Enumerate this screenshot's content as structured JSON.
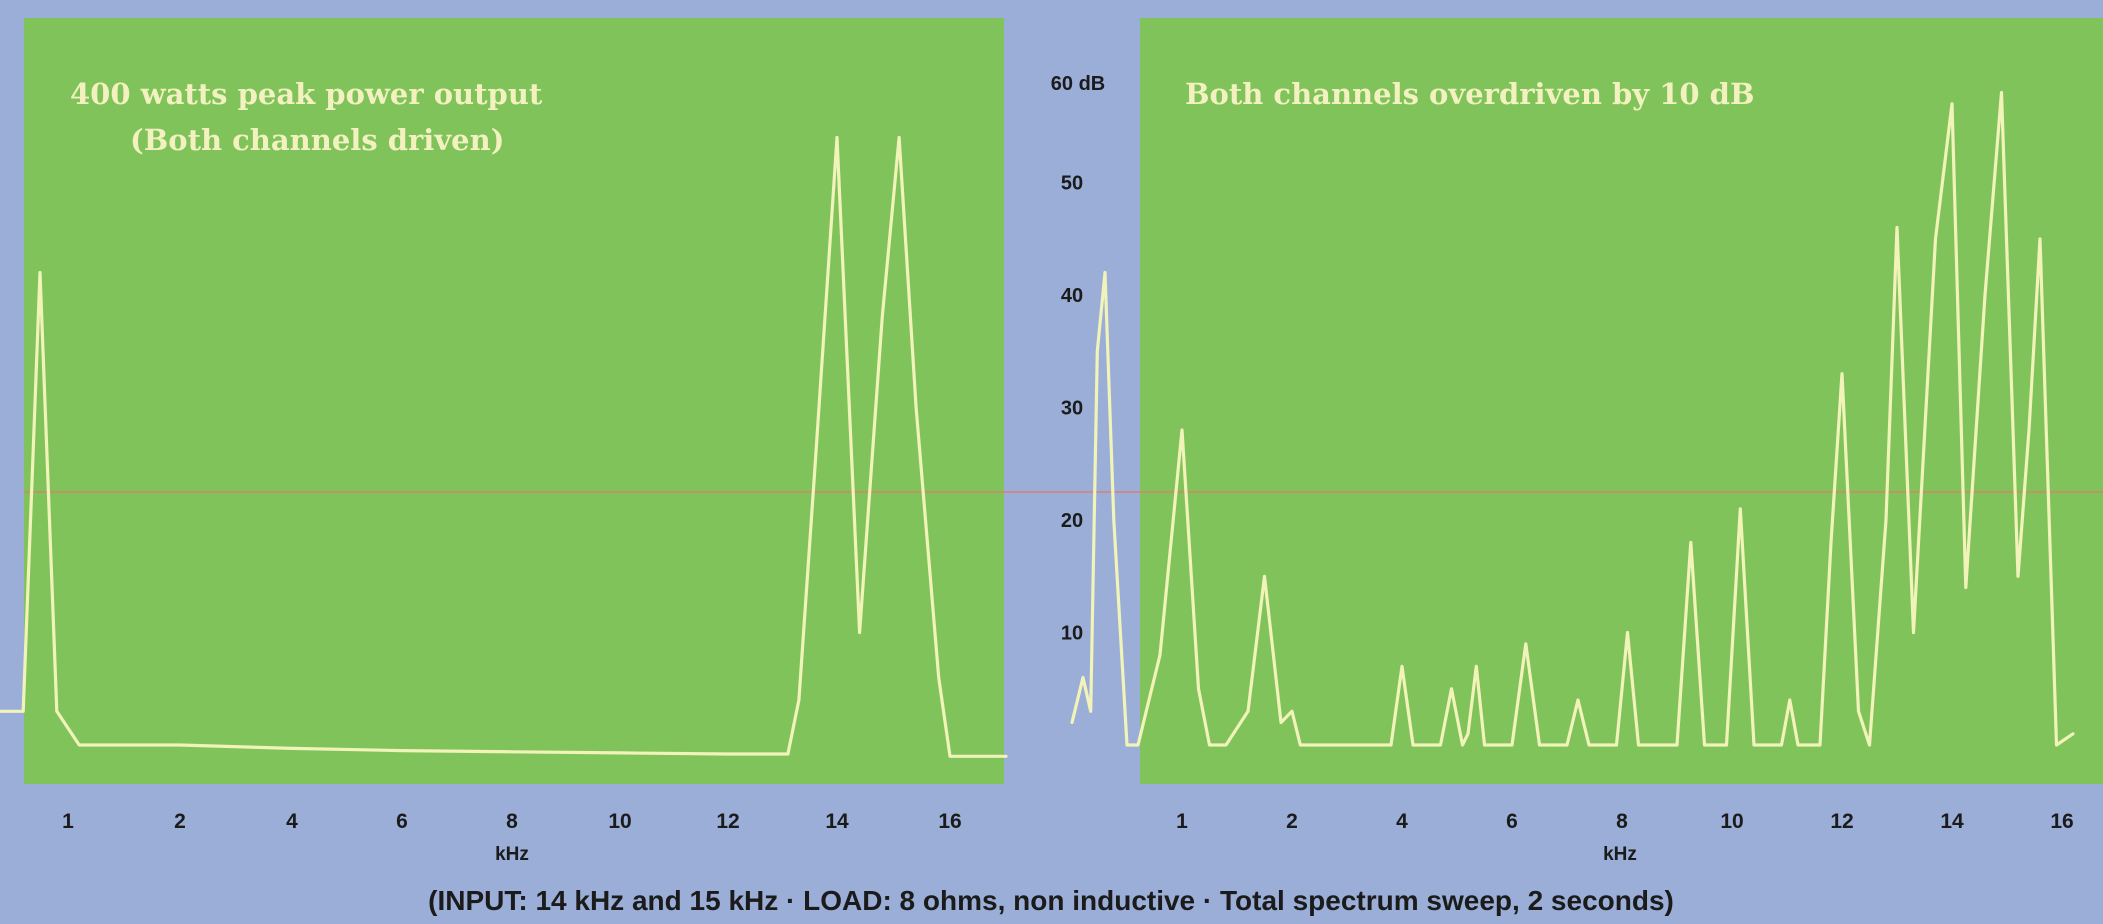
{
  "chart_data": [
    {
      "type": "line",
      "title": "400 watts peak power output",
      "subtitle": "(Both channels driven)",
      "xlabel": "kHz",
      "x_ticks": [
        "1",
        "2",
        "4",
        "6",
        "8",
        "10",
        "12",
        "14",
        "16"
      ],
      "ylim": [
        0,
        60
      ],
      "series": [
        {
          "values": [
            [
              0.2,
              3
            ],
            [
              0.6,
              3
            ],
            [
              0.75,
              42
            ],
            [
              0.9,
              3
            ],
            [
              1.1,
              0
            ],
            [
              2,
              0
            ],
            [
              4,
              -0.3
            ],
            [
              6,
              -0.5
            ],
            [
              8,
              -0.6
            ],
            [
              10,
              -0.7
            ],
            [
              12,
              -0.8
            ],
            [
              13.1,
              -0.8
            ],
            [
              13.3,
              4
            ],
            [
              13.6,
              25
            ],
            [
              14.0,
              54
            ],
            [
              14.4,
              10
            ],
            [
              14.8,
              38
            ],
            [
              15.1,
              54
            ],
            [
              15.4,
              30
            ],
            [
              15.8,
              6
            ],
            [
              16.0,
              -1
            ],
            [
              17.0,
              -1
            ]
          ]
        }
      ]
    },
    {
      "type": "line",
      "title": "Both channels overdriven by 10 dB",
      "xlabel": "kHz",
      "x_ticks": [
        "1",
        "2",
        "4",
        "6",
        "8",
        "10",
        "12",
        "14",
        "16"
      ],
      "ylim": [
        0,
        60
      ],
      "series": [
        {
          "values": [
            [
              0.0,
              2
            ],
            [
              0.1,
              6
            ],
            [
              0.17,
              3
            ],
            [
              0.23,
              35
            ],
            [
              0.3,
              42
            ],
            [
              0.38,
              20
            ],
            [
              0.5,
              0
            ],
            [
              0.6,
              0
            ],
            [
              0.8,
              8
            ],
            [
              1.0,
              28
            ],
            [
              1.15,
              5
            ],
            [
              1.25,
              0
            ],
            [
              1.4,
              0
            ],
            [
              1.6,
              3
            ],
            [
              1.75,
              15
            ],
            [
              1.9,
              2
            ],
            [
              2.0,
              3
            ],
            [
              2.15,
              0
            ],
            [
              3.8,
              0
            ],
            [
              4.0,
              7
            ],
            [
              4.2,
              0
            ],
            [
              4.7,
              0
            ],
            [
              4.9,
              5
            ],
            [
              5.1,
              0
            ],
            [
              5.2,
              1
            ],
            [
              5.35,
              7
            ],
            [
              5.5,
              0
            ],
            [
              6.0,
              0
            ],
            [
              6.25,
              9
            ],
            [
              6.5,
              0
            ],
            [
              7.0,
              0
            ],
            [
              7.2,
              4
            ],
            [
              7.4,
              0
            ],
            [
              7.9,
              0
            ],
            [
              8.1,
              10
            ],
            [
              8.3,
              0
            ],
            [
              9.0,
              0
            ],
            [
              9.25,
              18
            ],
            [
              9.5,
              0
            ],
            [
              9.9,
              0
            ],
            [
              10.15,
              21
            ],
            [
              10.4,
              0
            ],
            [
              10.9,
              0
            ],
            [
              11.05,
              4
            ],
            [
              11.2,
              0
            ],
            [
              11.6,
              0
            ],
            [
              11.8,
              18
            ],
            [
              12.0,
              33
            ],
            [
              12.3,
              3
            ],
            [
              12.5,
              0
            ],
            [
              12.8,
              20
            ],
            [
              13.0,
              46
            ],
            [
              13.3,
              10
            ],
            [
              13.7,
              45
            ],
            [
              14.0,
              57
            ],
            [
              14.25,
              14
            ],
            [
              14.6,
              40
            ],
            [
              14.9,
              58
            ],
            [
              15.2,
              15
            ],
            [
              15.4,
              28
            ],
            [
              15.6,
              45
            ],
            [
              15.9,
              0
            ],
            [
              16.2,
              1
            ]
          ]
        }
      ]
    }
  ],
  "shared": {
    "y_unit_label": "60 dB",
    "y_ticks": [
      "50",
      "40",
      "30",
      "20",
      "10"
    ],
    "caption": "(INPUT: 14 kHz and 15 kHz  ·  LOAD: 8 ohms, non inductive  ·  Total spectrum sweep, 2 seconds)"
  }
}
